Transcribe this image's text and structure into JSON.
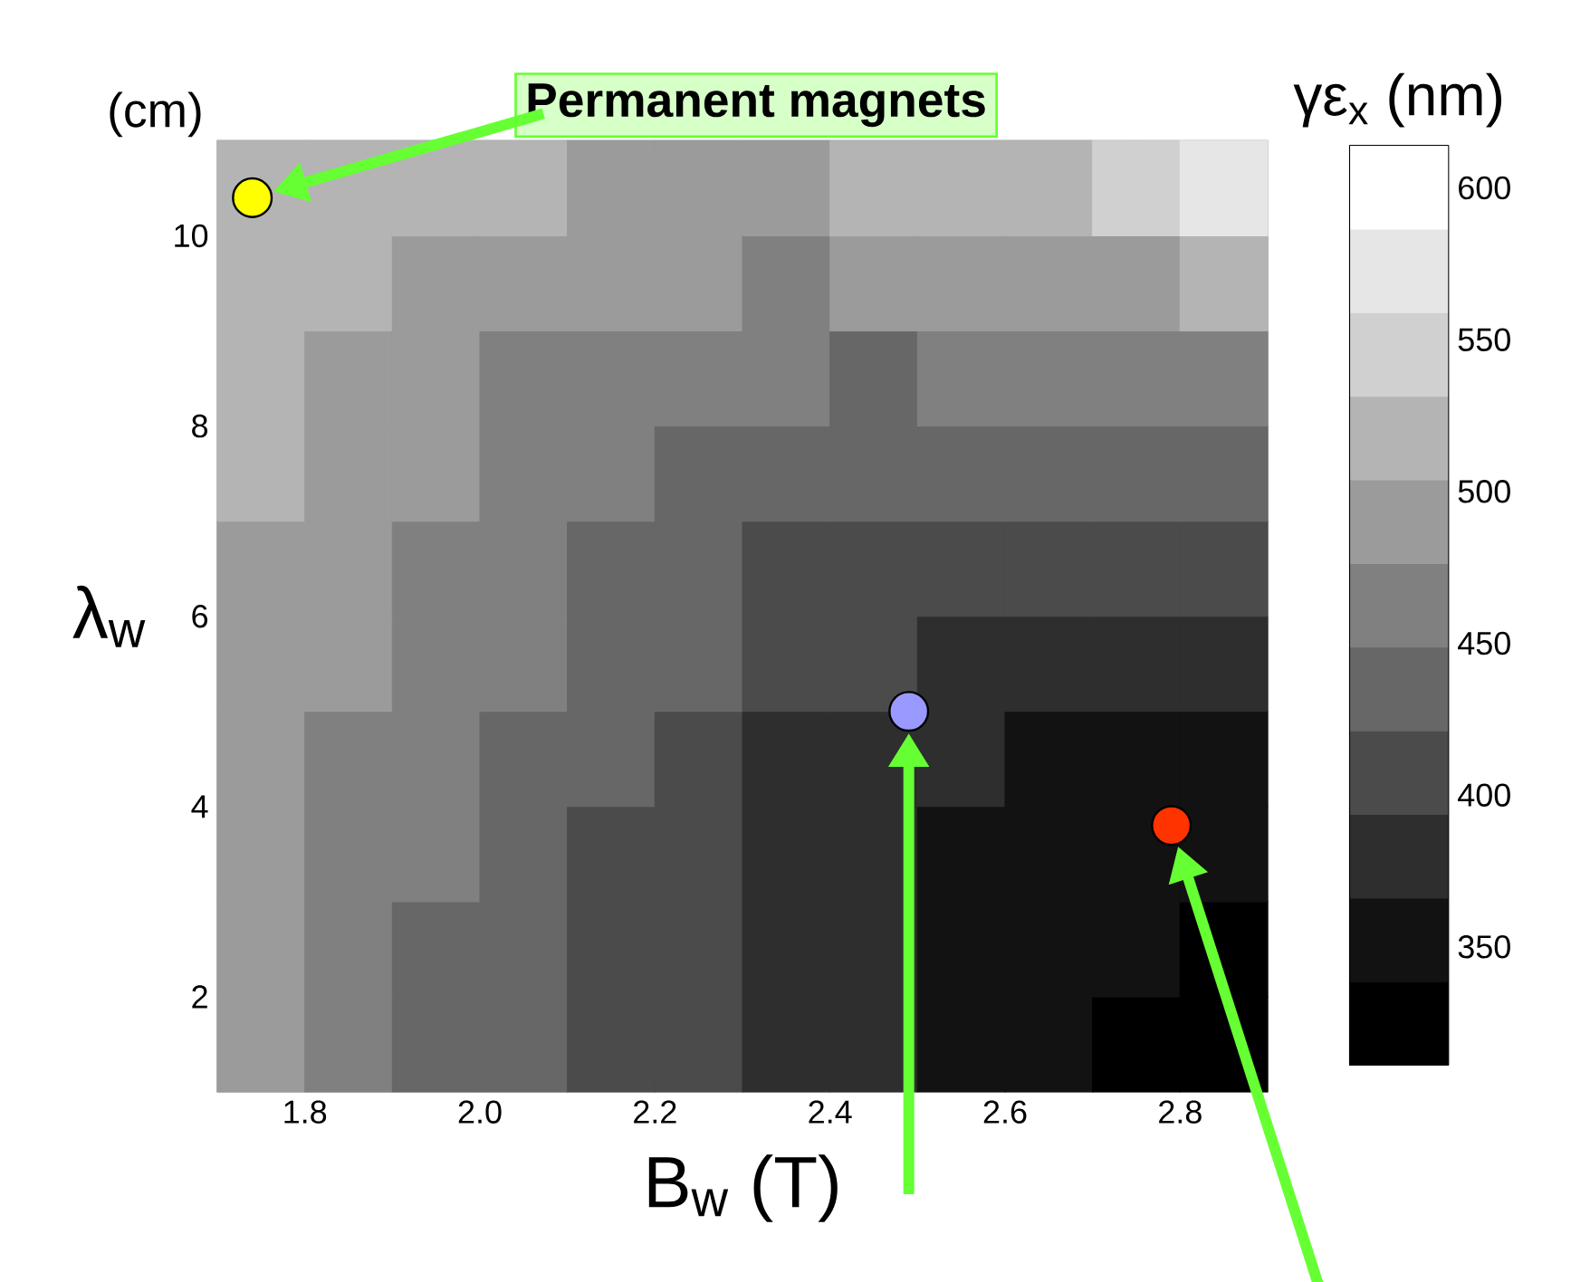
{
  "chart_data": {
    "type": "heatmap",
    "xlabel": "B$_{w}$ (T)",
    "ylabel": "λ$_{w}$",
    "clabel": "γε$_{x}$ (nm)",
    "xlim": [
      1.7,
      2.9
    ],
    "ylim": [
      1,
      11
    ],
    "xticks": [
      1.8,
      {
        "value": 2.0,
        "label": "2.0"
      },
      2.2,
      2.4,
      2.6,
      2.8
    ],
    "yticks": [
      2,
      4,
      6,
      8,
      10
    ],
    "clim": [
      311,
      614
    ],
    "cticks": [
      350,
      400,
      450,
      500,
      550,
      600
    ],
    "cells": [
      [
        516,
        516,
        516,
        516,
        488,
        488,
        488,
        516,
        516,
        516,
        545,
        573
      ],
      [
        516,
        516,
        488,
        488,
        488,
        488,
        459,
        488,
        488,
        488,
        488,
        516
      ],
      [
        516,
        488,
        488,
        459,
        459,
        459,
        459,
        430,
        459,
        459,
        459,
        459
      ],
      [
        516,
        488,
        488,
        459,
        459,
        430,
        430,
        430,
        430,
        430,
        430,
        430
      ],
      [
        488,
        488,
        459,
        459,
        430,
        430,
        402,
        402,
        402,
        402,
        402,
        402
      ],
      [
        488,
        488,
        459,
        459,
        430,
        430,
        402,
        402,
        374,
        374,
        374,
        374
      ],
      [
        488,
        459,
        459,
        430,
        430,
        402,
        374,
        374,
        374,
        345,
        345,
        345
      ],
      [
        488,
        459,
        459,
        430,
        402,
        402,
        374,
        374,
        345,
        345,
        345,
        345
      ],
      [
        488,
        459,
        430,
        430,
        402,
        402,
        374,
        374,
        345,
        345,
        345,
        321
      ],
      [
        488,
        459,
        430,
        430,
        402,
        402,
        374,
        374,
        345,
        345,
        321,
        321
      ]
    ],
    "series": [
      {
        "type": "scatter",
        "x": [
          1.74,
          2.49,
          2.79
        ],
        "values": [
          10.4,
          5.0,
          3.8
        ],
        "colors": [
          "#ffff00",
          "#9999ff",
          "#ff3300"
        ]
      }
    ],
    "marker": "circle",
    "annotations": [
      "Permanent magnets",
      "(cm)"
    ]
  }
}
